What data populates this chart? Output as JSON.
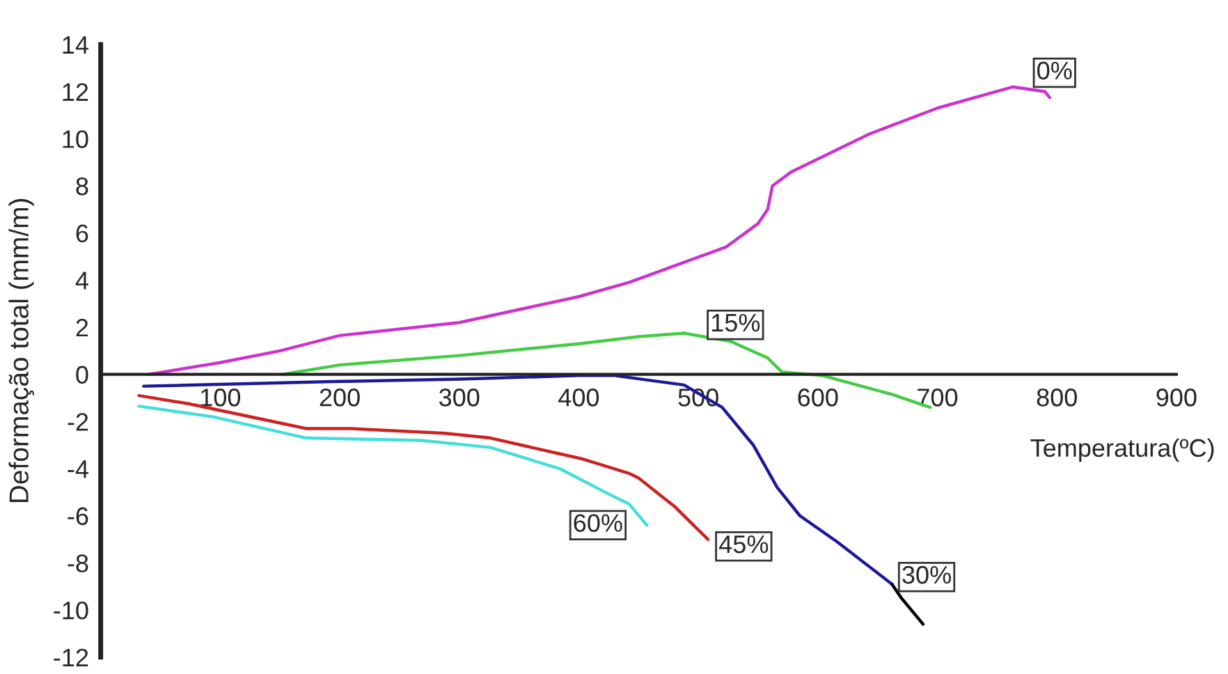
{
  "chart_data": {
    "type": "line",
    "xlabel": "Temperatura(ºC)",
    "ylabel": "Deformação total (mm/m)",
    "xlim": [
      0,
      900
    ],
    "xticks": [
      100,
      200,
      300,
      400,
      500,
      600,
      700,
      800,
      900
    ],
    "ylim": [
      -12,
      14
    ],
    "yticks": [
      -12,
      -10,
      -8,
      -6,
      -4,
      -2,
      0,
      2,
      4,
      6,
      8,
      10,
      12,
      14
    ],
    "grid": false,
    "legend": false,
    "series": [
      {
        "color": "#cc33cc",
        "x": [
          40,
          100,
          150,
          200,
          300,
          400,
          442,
          523,
          550,
          558,
          562,
          578,
          643,
          700,
          763,
          790,
          794
        ],
        "values": [
          0,
          0.5,
          1.0,
          1.65,
          2.2,
          3.3,
          3.9,
          5.4,
          6.4,
          7.0,
          8.0,
          8.6,
          10.2,
          11.3,
          12.2,
          12.0,
          11.75
        ]
      },
      {
        "color": "#44cc44",
        "x": [
          152,
          200,
          300,
          400,
          450,
          488,
          527,
          558,
          570,
          604,
          662,
          694
        ],
        "values": [
          0,
          0.4,
          0.8,
          1.3,
          1.6,
          1.75,
          1.4,
          0.7,
          0.1,
          -0.05,
          -0.85,
          -1.4
        ]
      },
      {
        "color": "#1a1a99",
        "x": [
          36,
          200,
          300,
          400,
          430,
          488,
          520,
          546,
          566,
          585,
          616,
          662
        ],
        "values": [
          -0.5,
          -0.3,
          -0.2,
          -0.05,
          -0.05,
          -0.45,
          -1.4,
          -3.0,
          -4.8,
          -6.0,
          -7.1,
          -8.9
        ]
      },
      {
        "color": "#000000",
        "x": [
          662,
          670,
          688
        ],
        "values": [
          -8.9,
          -9.5,
          -10.6
        ]
      },
      {
        "color": "#cc2222",
        "x": [
          32,
          74,
          172,
          210,
          288,
          326,
          404,
          442,
          450,
          480,
          508
        ],
        "values": [
          -0.9,
          -1.25,
          -2.3,
          -2.3,
          -2.5,
          -2.7,
          -3.6,
          -4.2,
          -4.4,
          -5.6,
          -7.0
        ]
      },
      {
        "color": "#44dddd",
        "x": [
          32,
          94,
          172,
          268,
          326,
          384,
          422,
          442,
          457
        ],
        "values": [
          -1.35,
          -1.8,
          -2.7,
          -2.8,
          -3.1,
          -4.0,
          -5.0,
          -5.5,
          -6.4
        ]
      }
    ],
    "annotations": [
      {
        "text": "0%",
        "x": 798,
        "y": 12.8
      },
      {
        "text": "15%",
        "x": 531,
        "y": 2.1
      },
      {
        "text": "30%",
        "x": 691,
        "y": -8.6
      },
      {
        "text": "45%",
        "x": 538,
        "y": -7.3
      },
      {
        "text": "60%",
        "x": 416,
        "y": -6.4
      }
    ]
  }
}
